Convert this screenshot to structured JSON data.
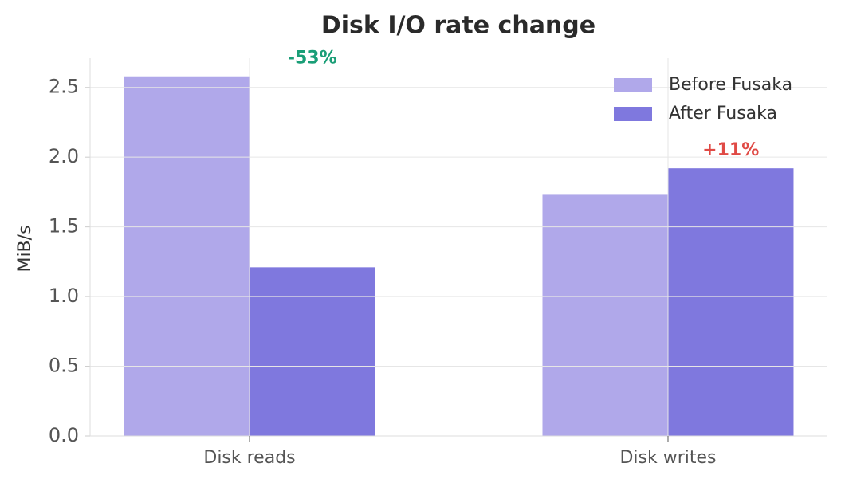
{
  "chart_data": {
    "type": "bar",
    "title": "Disk I/O rate change",
    "y_label": "MiB/s",
    "categories": [
      "Disk reads",
      "Disk writes"
    ],
    "series": [
      {
        "name": "Before Fusaka",
        "color": "#b0a8ea",
        "values": [
          2.58,
          1.73
        ]
      },
      {
        "name": "After Fusaka",
        "color": "#7f78de",
        "values": [
          1.21,
          1.92
        ]
      }
    ],
    "annotations": [
      {
        "text": "-53%",
        "color": "#1a9e77"
      },
      {
        "text": "+11%",
        "color": "#e04a45"
      }
    ],
    "ylim": [
      0,
      2.71
    ],
    "yticks": [
      {
        "value": 0,
        "label": "0.0"
      },
      0.5,
      {
        "value": 1,
        "label": "1.0"
      },
      1.5,
      {
        "value": 2,
        "label": "2.0"
      },
      2.5
    ],
    "grid": true,
    "legend": "upper right"
  }
}
